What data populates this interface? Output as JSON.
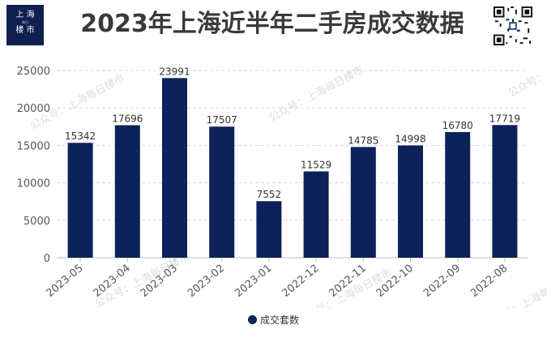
{
  "header": {
    "logo_line1": "上 海",
    "logo_small": "每日",
    "logo_line2": "楼 市",
    "title": "2023年上海近半年二手房成交数据"
  },
  "watermark_text": "公众号：上海每日楼市",
  "colors": {
    "bar": "#0d2259",
    "title": "#3a3a3a",
    "grid": "#d9d9d9",
    "watermark": "#c9cfdb"
  },
  "icons": {
    "qr": "qr-code-icon"
  },
  "chart_data": {
    "type": "bar",
    "categories": [
      "2023-05",
      "2023-04",
      "2023-03",
      "2023-02",
      "2023-01",
      "2022-12",
      "2022-11",
      "2022-10",
      "2022-09",
      "2022-08"
    ],
    "series": [
      {
        "name": "成交套数",
        "values": [
          15342,
          17696,
          23991,
          17507,
          7552,
          11529,
          14785,
          14998,
          16780,
          17719
        ]
      }
    ],
    "ylim": [
      0,
      25000
    ],
    "yticks": [
      "0",
      "5000",
      "10000",
      "15000",
      "20000",
      "25000"
    ],
    "grid": true,
    "legend": "bottom",
    "data_labels": true
  }
}
